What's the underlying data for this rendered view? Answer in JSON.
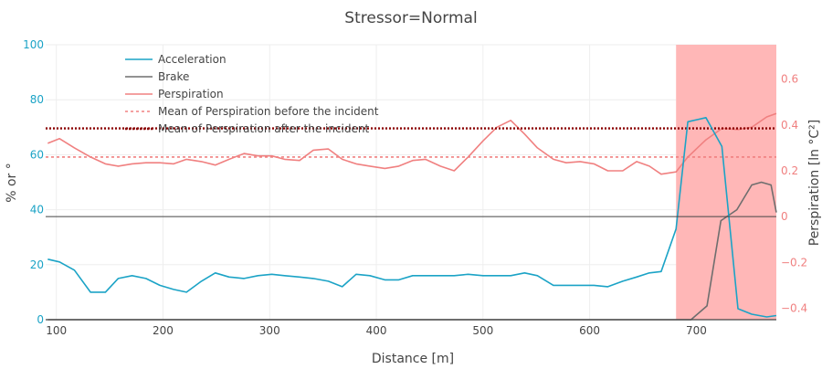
{
  "chart_data": {
    "type": "line",
    "title": "Stressor=Normal",
    "xlabel": "Distance [m]",
    "ylabel": "% or °",
    "y2label": "Perspiration [ln °C²]",
    "xlim": [
      90,
      775
    ],
    "ylim": [
      0,
      100
    ],
    "y2lim": [
      -0.45,
      0.75
    ],
    "x_ticks": [
      100,
      200,
      300,
      400,
      500,
      600,
      700
    ],
    "y_ticks": [
      0,
      20,
      40,
      60,
      80,
      100
    ],
    "y2_ticks": [
      -0.4,
      -0.2,
      0,
      0.2,
      0.4,
      0.6
    ],
    "y2_tick_labels": [
      "−0.4",
      "−0.2",
      "0",
      "0.2",
      "0.4",
      "0.6"
    ],
    "grid": true,
    "legend_position": "top-left",
    "incident_region": {
      "x_start": 681,
      "x_end": 775,
      "color": "#ffb3b3"
    },
    "colors": {
      "acceleration": "#1ba3c6",
      "brake": "#6e6e6e",
      "perspiration": "#f08080",
      "mean_before": "#f08080",
      "mean_after": "#8b0000",
      "left_axis": "#1ba3c6",
      "right_axis": "#f08080"
    },
    "series": [
      {
        "name": "Acceleration",
        "axis": "left",
        "x": [
          92,
          103,
          117,
          132,
          146,
          158,
          171,
          184,
          197,
          210,
          222,
          236,
          249,
          262,
          276,
          289,
          302,
          314,
          328,
          341,
          355,
          368,
          381,
          394,
          408,
          421,
          434,
          446,
          460,
          473,
          486,
          500,
          513,
          526,
          539,
          551,
          566,
          578,
          591,
          604,
          617,
          631,
          644,
          656,
          667,
          681,
          692,
          709,
          724,
          739,
          752,
          766,
          775
        ],
        "y": [
          22,
          21,
          18,
          10,
          10,
          15,
          16,
          15,
          12.5,
          11,
          10,
          14,
          17,
          15.5,
          15,
          16,
          16.5,
          16,
          15.5,
          15,
          14,
          12,
          16.5,
          16,
          14.5,
          14.5,
          16,
          16,
          16,
          16,
          16.5,
          16,
          16,
          16,
          17,
          16,
          12.5,
          12.5,
          12.5,
          12.5,
          12,
          14,
          15.5,
          17,
          17.5,
          33,
          72,
          73.5,
          63,
          4,
          2,
          1,
          1.5
        ]
      },
      {
        "name": "Brake",
        "axis": "left",
        "x": [
          92,
          681,
          695,
          710,
          723,
          738,
          752,
          761,
          770,
          775
        ],
        "y": [
          0,
          0,
          0,
          5,
          36,
          40,
          49,
          50,
          49,
          39
        ]
      },
      {
        "name": "Perspiration",
        "axis": "right",
        "x": [
          92,
          103,
          117,
          132,
          146,
          158,
          171,
          184,
          197,
          210,
          222,
          236,
          249,
          262,
          276,
          289,
          302,
          314,
          328,
          341,
          355,
          368,
          381,
          394,
          408,
          421,
          434,
          446,
          460,
          473,
          486,
          500,
          513,
          526,
          539,
          551,
          566,
          578,
          591,
          604,
          617,
          631,
          644,
          656,
          667,
          681,
          692,
          709,
          724,
          739,
          752,
          766,
          775
        ],
        "y": [
          0.32,
          0.34,
          0.3,
          0.26,
          0.23,
          0.22,
          0.23,
          0.235,
          0.235,
          0.23,
          0.25,
          0.24,
          0.225,
          0.25,
          0.275,
          0.265,
          0.265,
          0.25,
          0.245,
          0.29,
          0.295,
          0.25,
          0.23,
          0.22,
          0.21,
          0.22,
          0.245,
          0.25,
          0.22,
          0.2,
          0.26,
          0.33,
          0.39,
          0.42,
          0.36,
          0.3,
          0.25,
          0.235,
          0.24,
          0.23,
          0.2,
          0.2,
          0.24,
          0.22,
          0.185,
          0.195,
          0.26,
          0.335,
          0.385,
          0.38,
          0.39,
          0.435,
          0.45
        ]
      },
      {
        "name": "Mean of Perspiration before the incident",
        "axis": "right",
        "style": "dotted",
        "value": 0.26
      },
      {
        "name": "Mean of Perspiration after the incident",
        "axis": "right",
        "style": "dotted",
        "value": 0.385
      }
    ]
  }
}
